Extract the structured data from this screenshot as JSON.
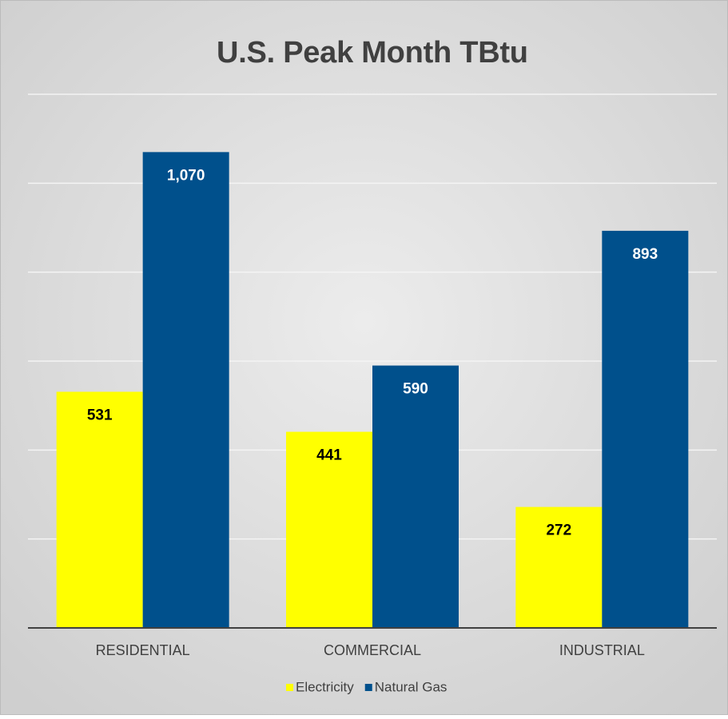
{
  "chart_data": {
    "type": "bar",
    "title": "U.S. Peak Month TBtu",
    "categories": [
      "RESIDENTIAL",
      "COMMERCIAL",
      "INDUSTRIAL"
    ],
    "series": [
      {
        "name": "Electricity",
        "color": "#ffff00",
        "values": [
          531,
          441,
          272
        ]
      },
      {
        "name": "Natural Gas",
        "color": "#00508c",
        "values": [
          1070,
          590,
          893
        ],
        "value_labels": [
          "1,070",
          "590",
          "893"
        ]
      }
    ],
    "ylim": [
      0,
      1200
    ],
    "yticks": [
      0,
      200,
      400,
      600,
      800,
      1000,
      1200
    ],
    "grid": true,
    "legend": "bottom"
  }
}
